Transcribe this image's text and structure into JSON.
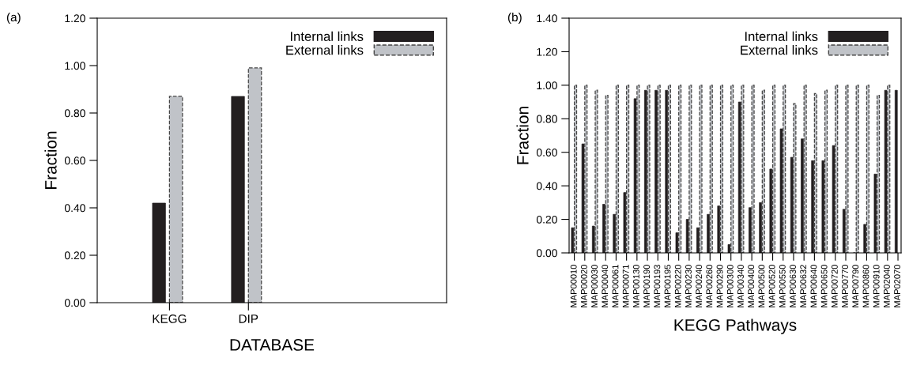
{
  "chart_data": [
    {
      "type": "bar",
      "annotations": [
        "(a)"
      ],
      "xlabel": "DATABASE",
      "ylabel": "Fraction",
      "categories": [
        "KEGG",
        "DIP"
      ],
      "series": [
        {
          "name": "Internal links",
          "color": "#231f20",
          "values": [
            0.42,
            0.87
          ]
        },
        {
          "name": "External links",
          "color": "#c0c3c8",
          "values": [
            0.87,
            0.99
          ]
        }
      ],
      "ylim": [
        0,
        1.2
      ],
      "yticks": [
        {
          "value": 0,
          "label": "0.00"
        },
        {
          "value": 0.2,
          "label": "0.20"
        },
        {
          "value": 0.4,
          "label": "0.40"
        },
        {
          "value": 0.6,
          "label": "0.60"
        },
        {
          "value": 0.8,
          "label": "0.80"
        },
        {
          "value": 1.0,
          "label": "1.00"
        },
        {
          "value": 1.2,
          "label": "1.20"
        }
      ],
      "legend": "top right",
      "grid": false
    },
    {
      "type": "bar",
      "annotations": [
        "(b)"
      ],
      "xlabel": "KEGG Pathways",
      "ylabel": "Fraction",
      "categories": [
        "MAP00010",
        "MAP00020",
        "MAP00030",
        "MAP00040",
        "MAP00061",
        "MAP00071",
        "MAP00130",
        "MAP00190",
        "MAP00193",
        "MAP00195",
        "MAP00220",
        "MAP00230",
        "MAP00240",
        "MAP00260",
        "MAP00290",
        "MAP00300",
        "MAP00340",
        "MAP00400",
        "MAP00500",
        "MAP00520",
        "MAP00550",
        "MAP00630",
        "MAP00632",
        "MAP00640",
        "MAP00650",
        "MAP00720",
        "MAP00770",
        "MAP00790",
        "MAP00860",
        "MAP00910",
        "MAP02040",
        "MAP02070"
      ],
      "series": [
        {
          "name": "Internal links",
          "color": "#231f20",
          "values": [
            0.15,
            0.65,
            0.16,
            0.29,
            0.23,
            0.36,
            0.92,
            0.97,
            0.97,
            0.97,
            0.12,
            0.2,
            0.15,
            0.23,
            0.28,
            0.05,
            0.9,
            0.27,
            0.3,
            0.5,
            0.74,
            0.57,
            0.68,
            0.55,
            0.55,
            0.64,
            0.26,
            0,
            0.17,
            0.47,
            0.97,
            0.97
          ]
        },
        {
          "name": "External links",
          "color": "#c0c3c8",
          "values": [
            1.0,
            1.0,
            0.97,
            0.94,
            1.0,
            1.0,
            1.0,
            1.0,
            1.0,
            1.0,
            1.0,
            1.0,
            1.0,
            1.0,
            1.0,
            1.0,
            1.0,
            1.0,
            0.97,
            1.0,
            1.0,
            0.89,
            1.0,
            0.95,
            0.97,
            1.0,
            1.0,
            1.0,
            1.0,
            0.94,
            1.0,
            null
          ]
        }
      ],
      "ylim": [
        0,
        1.4
      ],
      "yticks": [
        {
          "value": 0,
          "label": "0.00"
        },
        {
          "value": 0.2,
          "label": "0.20"
        },
        {
          "value": 0.4,
          "label": "0.40"
        },
        {
          "value": 0.6,
          "label": "0.60"
        },
        {
          "value": 0.8,
          "label": "0.80"
        },
        {
          "value": 1.0,
          "label": "1.00"
        },
        {
          "value": 1.2,
          "label": "1.20"
        },
        {
          "value": 1.4,
          "label": "1.40"
        }
      ],
      "legend": "top right",
      "grid": false
    }
  ]
}
